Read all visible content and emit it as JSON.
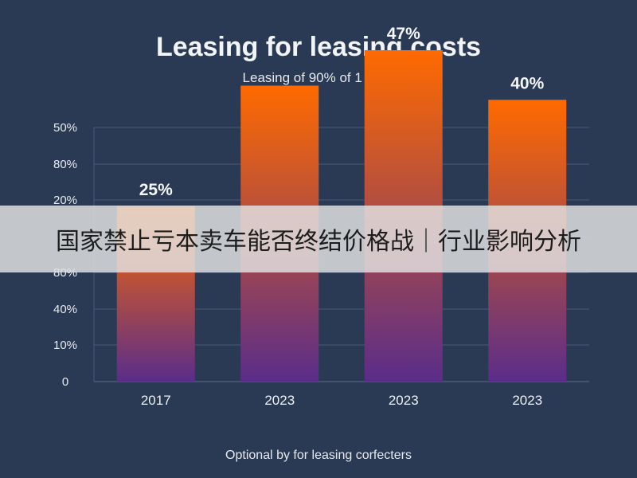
{
  "chart_data": {
    "type": "bar",
    "title": "Leasing for leasing costs",
    "subtitle": "Leasing of 90% of 1 Data",
    "footnote": "Optional by for leasing corfecters",
    "categories": [
      "2017",
      "2023",
      "2023",
      "2023"
    ],
    "values": [
      25,
      42,
      47,
      40
    ],
    "data_labels": [
      "25%",
      "",
      "47%",
      "40%"
    ],
    "y_tick_labels": [
      "0",
      "10%",
      "40%",
      "80%",
      "",
      "20%",
      "80%",
      "50%"
    ],
    "grid": true,
    "colors": {
      "bar_top": "#ff6a00",
      "bar_bottom": "#5a2d8a",
      "background": "#2a3a55",
      "grid": "#4a5a78"
    }
  },
  "banner": {
    "text": "国家禁止亏本卖车能否终结价格战｜行业影响分析"
  }
}
